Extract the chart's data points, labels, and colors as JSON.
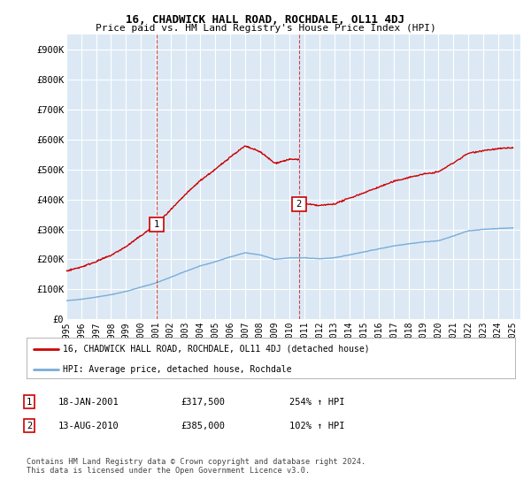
{
  "title": "16, CHADWICK HALL ROAD, ROCHDALE, OL11 4DJ",
  "subtitle": "Price paid vs. HM Land Registry's House Price Index (HPI)",
  "ylabel_ticks": [
    "£0",
    "£100K",
    "£200K",
    "£300K",
    "£400K",
    "£500K",
    "£600K",
    "£700K",
    "£800K",
    "£900K"
  ],
  "ytick_values": [
    0,
    100000,
    200000,
    300000,
    400000,
    500000,
    600000,
    700000,
    800000,
    900000
  ],
  "ylim": [
    0,
    950000
  ],
  "xlim_start": 1995.0,
  "xlim_end": 2025.5,
  "bg_color": "#dce9f5",
  "grid_color": "#ffffff",
  "red_color": "#cc0000",
  "blue_color": "#7aadd8",
  "legend_label_red": "16, CHADWICK HALL ROAD, ROCHDALE, OL11 4DJ (detached house)",
  "legend_label_blue": "HPI: Average price, detached house, Rochdale",
  "point1_label": "1",
  "point1_date": "18-JAN-2001",
  "point1_price": "£317,500",
  "point1_hpi": "254% ↑ HPI",
  "point1_x": 2001.05,
  "point1_y": 317500,
  "point2_label": "2",
  "point2_date": "13-AUG-2010",
  "point2_price": "£385,000",
  "point2_hpi": "102% ↑ HPI",
  "point2_x": 2010.62,
  "point2_y": 385000,
  "footnote": "Contains HM Land Registry data © Crown copyright and database right 2024.\nThis data is licensed under the Open Government Licence v3.0.",
  "xtick_years": [
    1995,
    1996,
    1997,
    1998,
    1999,
    2000,
    2001,
    2002,
    2003,
    2004,
    2005,
    2006,
    2007,
    2008,
    2009,
    2010,
    2011,
    2012,
    2013,
    2014,
    2015,
    2016,
    2017,
    2018,
    2019,
    2020,
    2021,
    2022,
    2023,
    2024,
    2025
  ]
}
